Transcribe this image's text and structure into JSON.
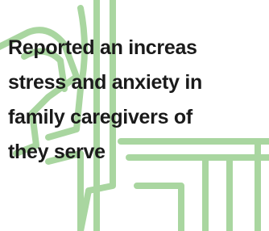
{
  "card": {
    "lines": [
      "Reported an increas",
      "stress and anxiety in",
      "family caregivers of",
      "they serve"
    ]
  }
}
